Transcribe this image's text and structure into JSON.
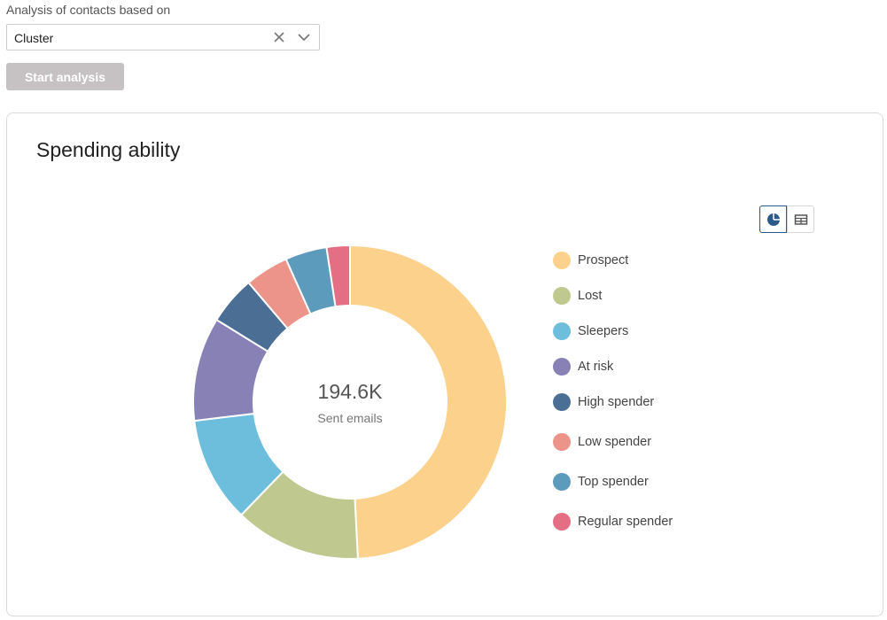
{
  "analysis": {
    "label": "Analysis of contacts based on",
    "select_value": "Cluster",
    "clear_icon": "close-icon",
    "chevron_icon": "chevron-down-icon",
    "start_button": "Start analysis"
  },
  "card": {
    "title": "Spending ability",
    "view_toggle": {
      "options": [
        "pie-chart-icon",
        "table-icon"
      ],
      "selected": "pie-chart-icon",
      "accent": "#2b5a8c"
    }
  },
  "chart_data": {
    "type": "pie",
    "donut": true,
    "center_value": "194.6K",
    "center_label": "Sent emails",
    "legend_position": "right",
    "slices": [
      {
        "label": "Prospect",
        "value": 49.2,
        "color": "#fbd18b"
      },
      {
        "label": "Lost",
        "value": 13.0,
        "color": "#bfc98f"
      },
      {
        "label": "Sleepers",
        "value": 10.9,
        "color": "#6dbedd"
      },
      {
        "label": "At risk",
        "value": 10.7,
        "color": "#8781b6"
      },
      {
        "label": "High spender",
        "value": 5.0,
        "color": "#4b6f94"
      },
      {
        "label": "Low spender",
        "value": 4.5,
        "color": "#ec948a"
      },
      {
        "label": "Top spender",
        "value": 4.3,
        "color": "#5d9bbc"
      },
      {
        "label": "Regular spender",
        "value": 2.4,
        "color": "#e46f84"
      }
    ]
  }
}
